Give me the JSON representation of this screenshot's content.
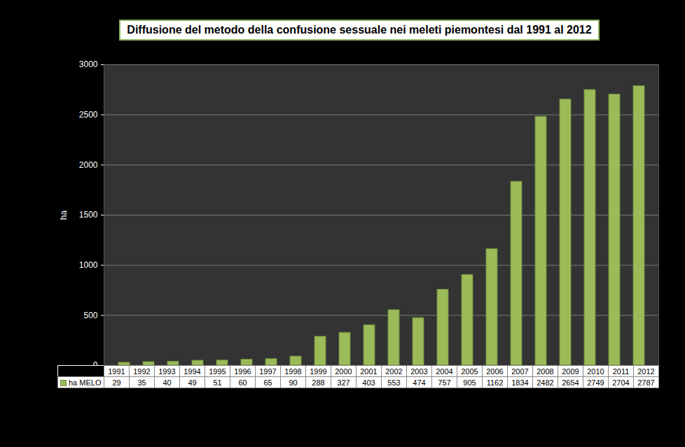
{
  "chart_data": {
    "type": "bar",
    "title": "Diffusione del metodo della confusione sessuale nei meleti piemontesi dal 1991 al 2012",
    "categories": [
      "1991",
      "1992",
      "1993",
      "1994",
      "1995",
      "1996",
      "1997",
      "1998",
      "1999",
      "2000",
      "2001",
      "2002",
      "2003",
      "2004",
      "2005",
      "2006",
      "2007",
      "2008",
      "2009",
      "2010",
      "2011",
      "2012"
    ],
    "series": [
      {
        "name": "ha MELO",
        "color": "#9bbb59",
        "values": [
          29,
          35,
          40,
          49,
          51,
          60,
          65,
          90,
          288,
          327,
          403,
          553,
          474,
          757,
          905,
          1162,
          1834,
          2482,
          2654,
          2749,
          2704,
          2787
        ]
      }
    ],
    "y_label": "ha",
    "ylim": [
      0,
      3000
    ],
    "yticks": [
      0,
      500,
      1000,
      1500,
      2000,
      2500,
      3000
    ],
    "grid": true,
    "data_labels": true
  }
}
